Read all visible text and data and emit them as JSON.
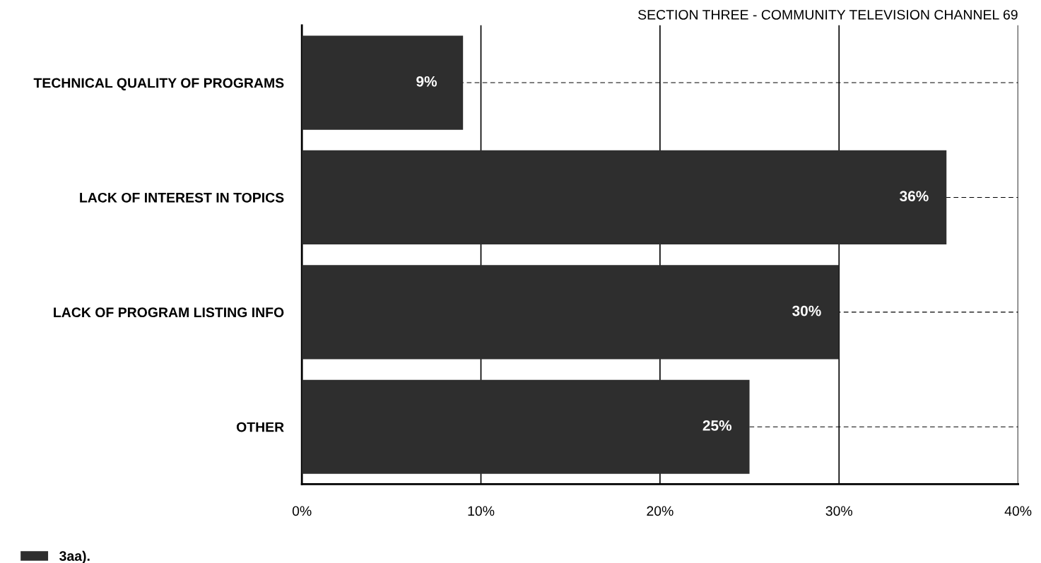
{
  "chart_data": {
    "type": "bar",
    "orientation": "horizontal",
    "title": "SECTION THREE - COMMUNITY TELEVISION CHANNEL 69",
    "categories": [
      "TECHNICAL QUALITY OF PROGRAMS",
      "LACK OF INTEREST IN TOPICS",
      "LACK OF PROGRAM LISTING INFO",
      "OTHER"
    ],
    "series": [
      {
        "name": "3aa).",
        "color": "#2e2e2e",
        "values": [
          9,
          36,
          30,
          25
        ],
        "value_labels": [
          "9%",
          "36%",
          "30%",
          "25%"
        ]
      }
    ],
    "xlim": [
      0,
      40
    ],
    "xticks": [
      {
        "value": 0,
        "label": "0%"
      },
      {
        "value": 10,
        "label": "10%"
      },
      {
        "value": 20,
        "label": "20%"
      },
      {
        "value": 30,
        "label": "30%"
      },
      {
        "value": 40,
        "label": "40%"
      }
    ],
    "grid": true,
    "legend": "bottom left"
  }
}
